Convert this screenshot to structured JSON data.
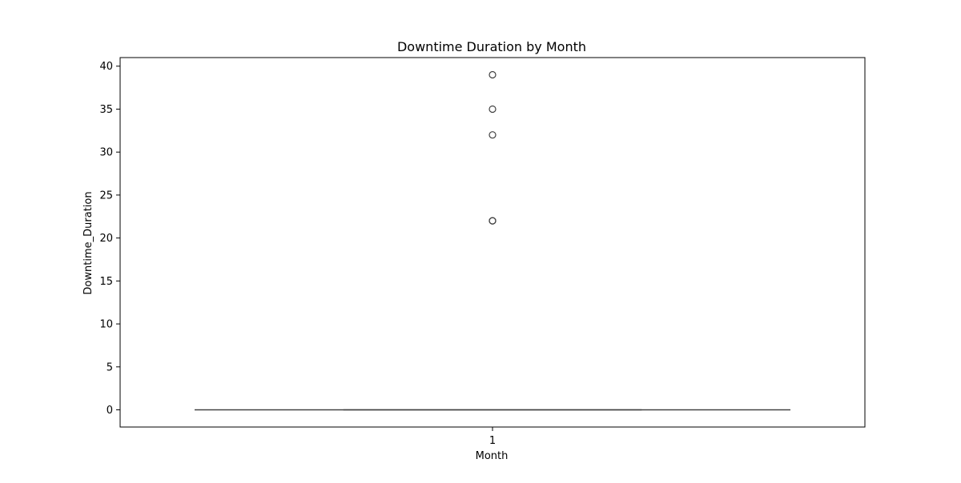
{
  "chart_data": {
    "type": "box",
    "title": "Downtime Duration by Month",
    "xlabel": "Month",
    "ylabel": "Downtime_Duration",
    "categories": [
      "1"
    ],
    "ylim": [
      -2,
      41
    ],
    "yticks": [
      0,
      5,
      10,
      15,
      20,
      25,
      30,
      35,
      40
    ],
    "boxes": [
      {
        "category": "1",
        "whisker_low": 0,
        "q1": 0,
        "median": 0,
        "q3": 0,
        "whisker_high": 0,
        "outliers": [
          22,
          22,
          32,
          35,
          39
        ]
      }
    ],
    "grid": false,
    "colors": {
      "box_line": "#3f3f3f",
      "outlier_edge": "#3f3f3f",
      "axes": "#000000"
    }
  }
}
